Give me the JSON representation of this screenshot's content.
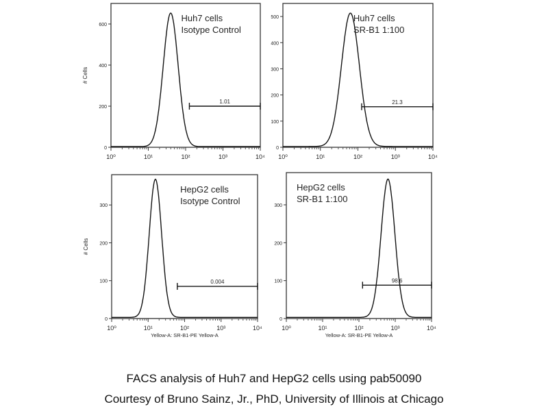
{
  "chart_data": [
    {
      "type": "line",
      "title": "Huh7 cells",
      "subtitle": "Isotype Control",
      "xscale": "log",
      "xlim": [
        1,
        10000
      ],
      "x_ticks": [
        "10⁰",
        "10¹",
        "10²",
        "10³",
        "10⁴"
      ],
      "ylim": [
        0,
        700
      ],
      "y_ticks": [
        0,
        200,
        400,
        600
      ],
      "ylabel": "# Cells",
      "xlabel": "",
      "histogram": {
        "peak_log10_x": 1.6,
        "peak_count": 650,
        "sd_log10": 0.2
      },
      "gate": {
        "from_log10_x": 2.1,
        "to_log10_x": 4,
        "at_count": 200,
        "label": "1.01"
      }
    },
    {
      "type": "line",
      "title": "Huh7 cells",
      "subtitle": "SR-B1 1:100",
      "xscale": "log",
      "xlim": [
        1,
        10000
      ],
      "x_ticks": [
        "10⁰",
        "10¹",
        "10²",
        "10³",
        "10⁴"
      ],
      "ylim": [
        0,
        550
      ],
      "y_ticks": [
        0,
        100,
        200,
        300,
        400,
        500
      ],
      "ylabel": "",
      "xlabel": "",
      "histogram": {
        "peak_log10_x": 1.8,
        "peak_count": 510,
        "sd_log10": 0.24
      },
      "gate": {
        "from_log10_x": 2.1,
        "to_log10_x": 4,
        "at_count": 155,
        "label": "21.3"
      }
    },
    {
      "type": "line",
      "title": "HepG2 cells",
      "subtitle": "Isotype Control",
      "xscale": "log",
      "xlim": [
        1,
        10000
      ],
      "x_ticks": [
        "10⁰",
        "10¹",
        "10²",
        "10³",
        "10⁴"
      ],
      "ylim": [
        0,
        380
      ],
      "y_ticks": [
        0,
        100,
        200,
        300
      ],
      "ylabel": "# Cells",
      "xlabel": "Yellow-A: SR-B1-PE Yellow-A",
      "histogram": {
        "peak_log10_x": 1.2,
        "peak_count": 365,
        "sd_log10": 0.17
      },
      "gate": {
        "from_log10_x": 1.8,
        "to_log10_x": 4,
        "at_count": 85,
        "label": "0.004"
      }
    },
    {
      "type": "line",
      "title": "HepG2 cells",
      "subtitle": "SR-B1 1:100",
      "xscale": "log",
      "xlim": [
        1,
        10000
      ],
      "x_ticks": [
        "10⁰",
        "10¹",
        "10²",
        "10³",
        "10⁴"
      ],
      "ylim": [
        0,
        385
      ],
      "y_ticks": [
        0,
        100,
        200,
        300
      ],
      "ylabel": "",
      "xlabel": "Yellow-A: SR-B1-PE Yellow-A",
      "histogram": {
        "peak_log10_x": 2.8,
        "peak_count": 365,
        "sd_log10": 0.19
      },
      "gate": {
        "from_log10_x": 2.1,
        "to_log10_x": 4,
        "at_count": 88,
        "label": "98.6"
      }
    }
  ],
  "caption": {
    "line1": "FACS analysis of Huh7 and HepG2 cells using pab50090",
    "line2": "Courtesy of Bruno Sainz, Jr., PhD, University of Illinois at Chicago"
  }
}
